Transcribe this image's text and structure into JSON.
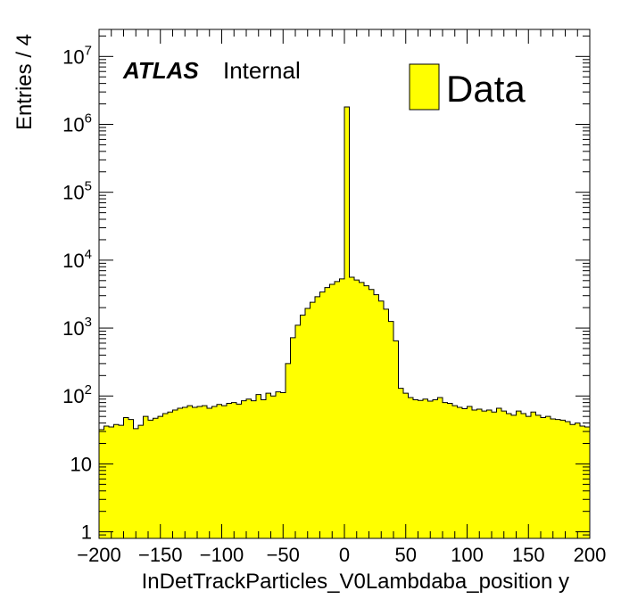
{
  "chart_data": {
    "type": "bar",
    "style": "filled-histogram",
    "xlabel": "InDetTrackParticles_V0Lambdaba_position y",
    "ylabel": "Entries / 4",
    "xlim": [
      -200,
      200
    ],
    "ylim": [
      0.8,
      25000000
    ],
    "log_y": true,
    "bin_width": 4,
    "x_ticks": [
      -200,
      -150,
      -100,
      -50,
      0,
      50,
      100,
      150,
      200
    ],
    "x_tick_labels": [
      "−200",
      "−150",
      "−100",
      "−50",
      "0",
      "50",
      "100",
      "150",
      "200"
    ],
    "y_tick_labels": [
      {
        "value": 1,
        "base": "1",
        "exp": ""
      },
      {
        "value": 10,
        "base": "10",
        "exp": ""
      },
      {
        "value": 100,
        "base": "10",
        "exp": "2"
      },
      {
        "value": 1000,
        "base": "10",
        "exp": "3"
      },
      {
        "value": 10000,
        "base": "10",
        "exp": "4"
      },
      {
        "value": 100000,
        "base": "10",
        "exp": "5"
      },
      {
        "value": 1000000,
        "base": "10",
        "exp": "6"
      },
      {
        "value": 10000000,
        "base": "10",
        "exp": "7"
      }
    ],
    "atlas_label": "ATLAS",
    "atlas_status": "Internal",
    "legend_position": "top-right",
    "series": [
      {
        "name": "Data",
        "fill": "#ffff00",
        "edge": "#000000",
        "x": [
          -198,
          -194,
          -190,
          -186,
          -182,
          -178,
          -174,
          -170,
          -166,
          -162,
          -158,
          -154,
          -150,
          -146,
          -142,
          -138,
          -134,
          -130,
          -126,
          -122,
          -118,
          -114,
          -110,
          -106,
          -102,
          -98,
          -94,
          -90,
          -86,
          -82,
          -78,
          -74,
          -70,
          -66,
          -62,
          -58,
          -54,
          -50,
          -46,
          -42,
          -38,
          -34,
          -30,
          -26,
          -22,
          -18,
          -14,
          -10,
          -6,
          -2,
          2,
          6,
          10,
          14,
          18,
          22,
          26,
          30,
          34,
          38,
          42,
          46,
          50,
          54,
          58,
          62,
          66,
          70,
          74,
          78,
          82,
          86,
          90,
          94,
          98,
          102,
          106,
          110,
          114,
          118,
          122,
          126,
          130,
          134,
          138,
          142,
          146,
          150,
          154,
          158,
          162,
          166,
          170,
          174,
          178,
          182,
          186,
          190,
          194,
          198
        ],
        "values": [
          32,
          36,
          35,
          38,
          37,
          48,
          45,
          33,
          37,
          50,
          44,
          47,
          50,
          55,
          58,
          62,
          66,
          68,
          72,
          68,
          70,
          72,
          66,
          70,
          75,
          72,
          78,
          80,
          76,
          85,
          90,
          85,
          105,
          88,
          110,
          100,
          115,
          112,
          300,
          720,
          1100,
          1550,
          1950,
          2400,
          2900,
          3400,
          3950,
          4400,
          4850,
          5300,
          1800000,
          5600,
          5100,
          4700,
          4200,
          3700,
          3100,
          2500,
          1900,
          1250,
          650,
          130,
          110,
          95,
          88,
          86,
          90,
          84,
          88,
          95,
          80,
          78,
          72,
          68,
          65,
          70,
          62,
          64,
          60,
          62,
          58,
          66,
          60,
          55,
          52,
          60,
          55,
          50,
          58,
          52,
          48,
          50,
          46,
          45,
          44,
          42,
          38,
          40,
          36,
          35
        ]
      }
    ]
  }
}
